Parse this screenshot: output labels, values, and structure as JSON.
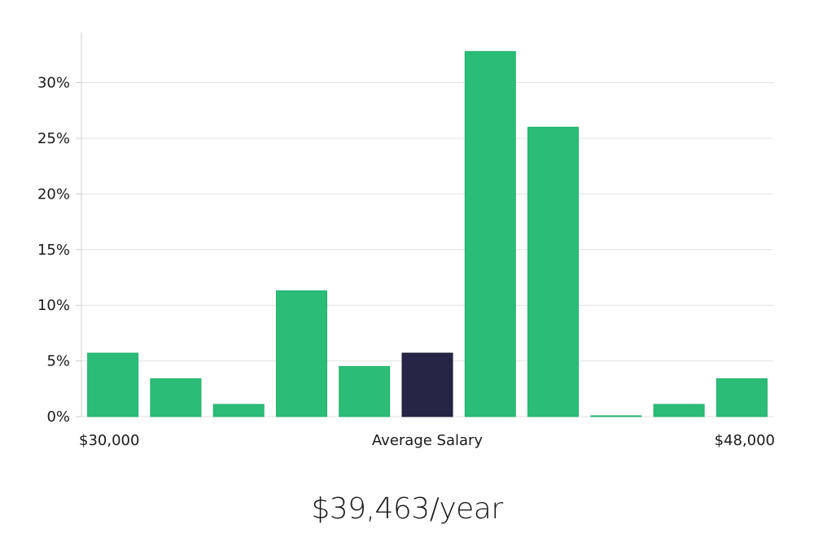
{
  "chart_data": {
    "type": "bar",
    "categories": [
      "1",
      "2",
      "3",
      "4",
      "5",
      "6",
      "7",
      "8",
      "9",
      "10",
      "11"
    ],
    "values": [
      5.7,
      3.4,
      1.1,
      11.3,
      4.5,
      5.7,
      32.8,
      26.0,
      0.0,
      1.1,
      3.4
    ],
    "highlight_index": 5,
    "ylim": [
      0,
      34
    ],
    "y_ticks": [
      0,
      5,
      10,
      15,
      20,
      25,
      30
    ],
    "y_tick_labels": [
      "0%",
      "5%",
      "10%",
      "15%",
      "20%",
      "25%",
      "30%"
    ],
    "x_labels": {
      "left": "$30,000",
      "center": "Average Salary",
      "right": "$48,000"
    },
    "grid": true,
    "colors": {
      "bar": "#2bbd77",
      "bar_edge": "#22b06c",
      "highlight": "#272546",
      "grid": "#e0e0e0",
      "axis": "#cccccc"
    }
  },
  "summary": {
    "salary_text": "$39,463/year"
  }
}
